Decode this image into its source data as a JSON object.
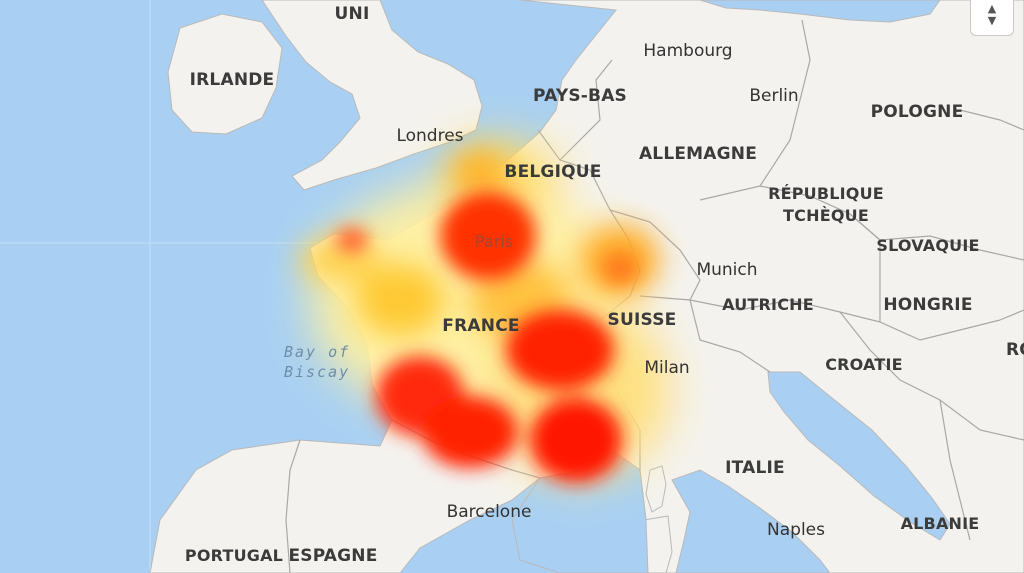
{
  "map": {
    "colors": {
      "water": "#a9d0f2",
      "land": "#f4f2ee",
      "border": "#a8a8a8",
      "hotspot_red": "#ff1a00",
      "hotspot_orange": "#ff7a00",
      "hotspot_yellow": "#ffd84a"
    },
    "countries": {
      "uk": "UNI",
      "ireland": "IRLANDE",
      "netherlands": "PAYS-BAS",
      "belgium": "BELGIQUE",
      "germany": "ALLEMAGNE",
      "poland": "POLOGNE",
      "czech_line1": "RÉPUBLIQUE",
      "czech_line2": "TCHÈQUE",
      "slovakia": "SLOVAQUIE",
      "austria": "AUTRICHE",
      "hungary": "HONGRIE",
      "switzerland": "SUISSE",
      "france": "FRANCE",
      "croatia": "CROATIE",
      "romania_partial": "RO",
      "italy": "ITALIE",
      "albania": "ALBANIE",
      "portugal": "PORTUGAL",
      "spain": "ESPAGNE"
    },
    "cities": {
      "hamburg": "Hambourg",
      "berlin": "Berlin",
      "london": "Londres",
      "paris": "Paris",
      "munich": "Munich",
      "milan": "Milan",
      "naples": "Naples",
      "barcelona": "Barcelone"
    },
    "sea": {
      "line1": "Bay of",
      "line2": "Biscay"
    },
    "zoom_control": {
      "up_icon": "triangle-up-icon",
      "down_icon": "triangle-down-icon"
    }
  }
}
